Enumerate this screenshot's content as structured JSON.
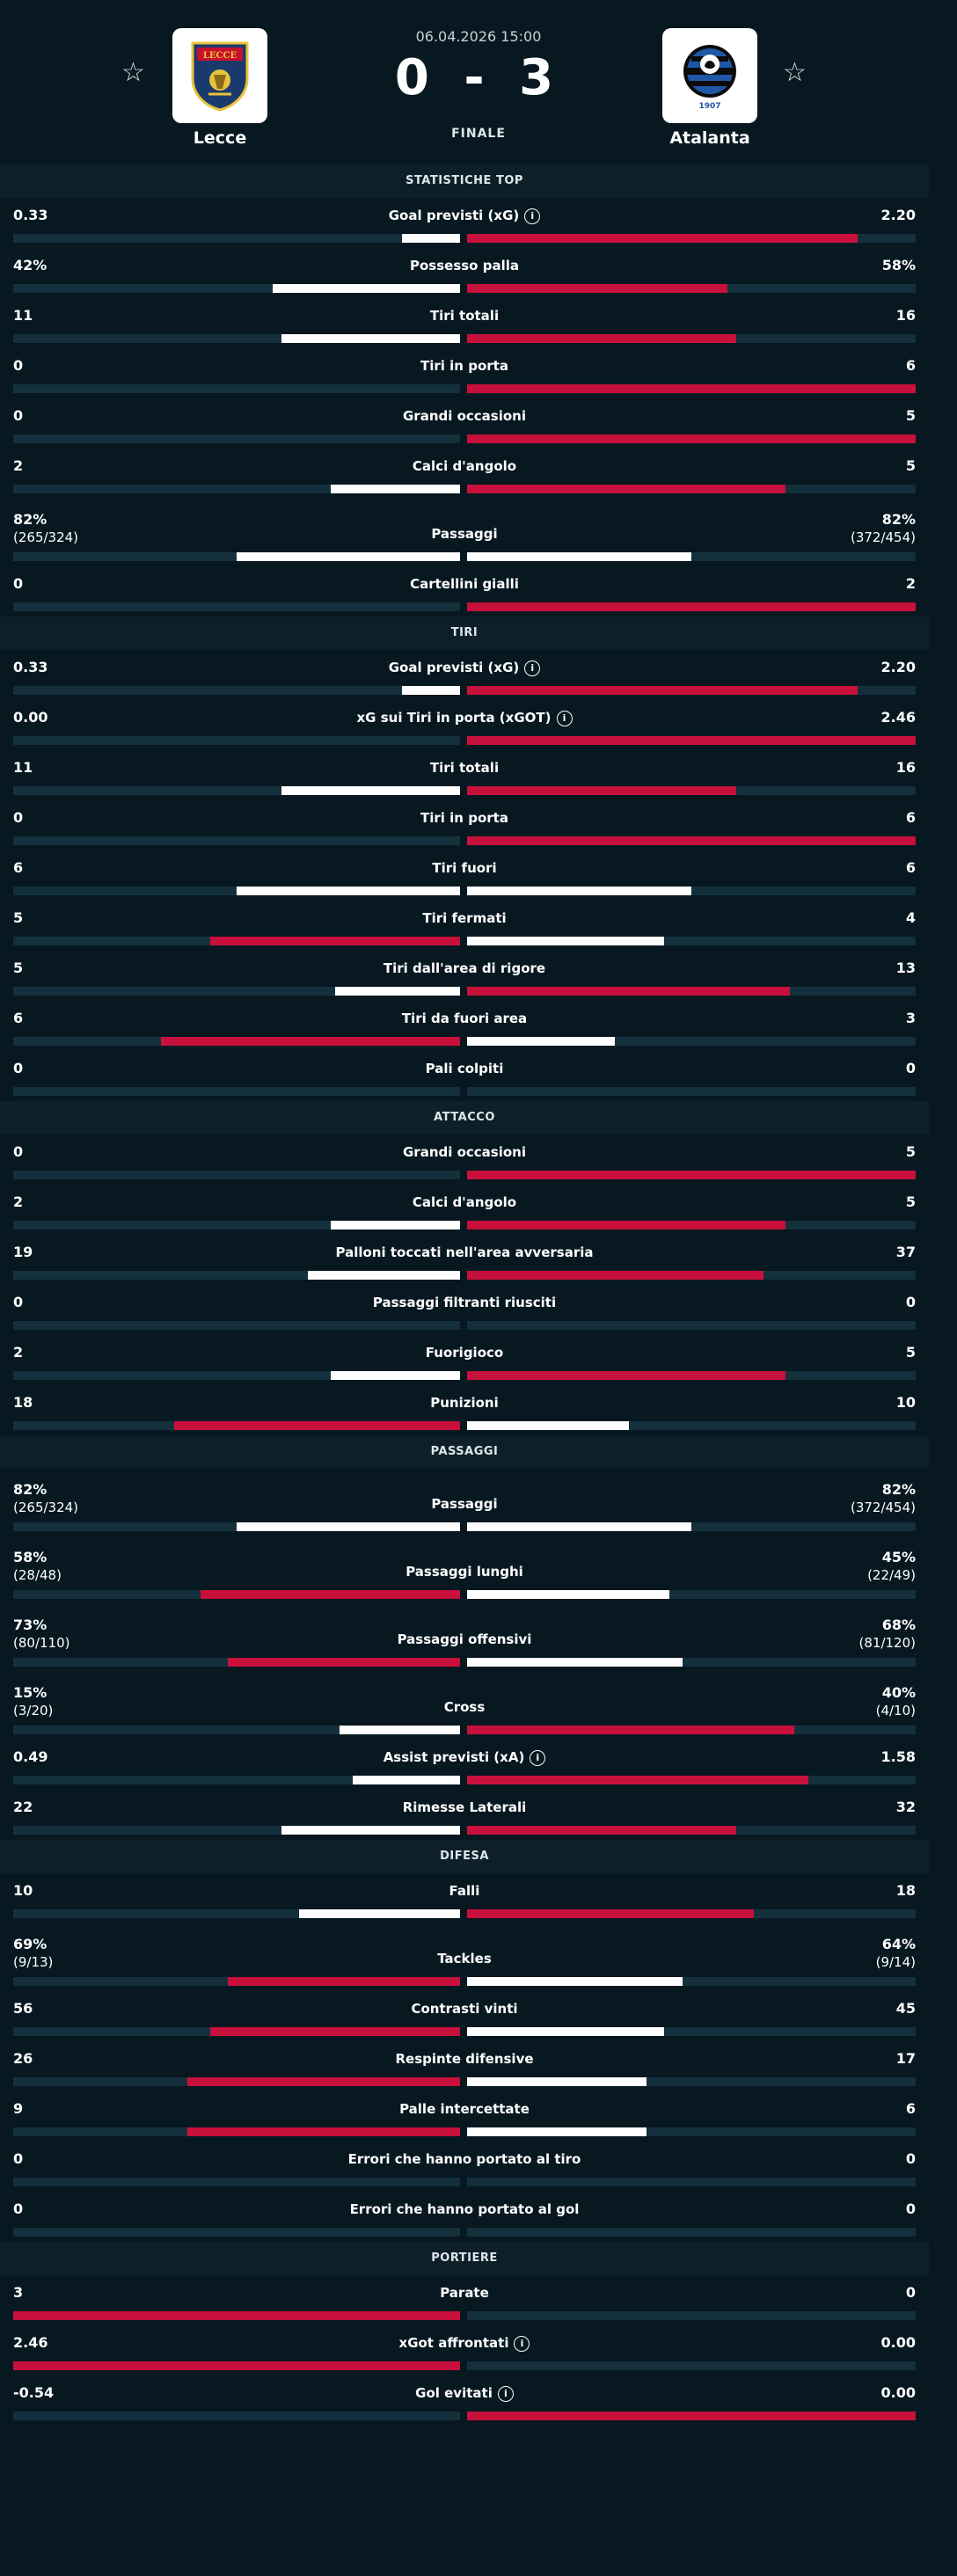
{
  "match": {
    "datetime": "06.04.2026 15:00",
    "score": "0 - 3",
    "status": "FINALE",
    "home": {
      "name": "Lecce",
      "logo_text": "LECCE",
      "colors": [
        "#1a3a6e",
        "#e8c33a",
        "#c8102e"
      ]
    },
    "away": {
      "name": "Atalanta",
      "logo_text": "1907",
      "colors": [
        "#1f57a5",
        "#0b0b0b"
      ]
    }
  },
  "colors": {
    "background": "#071821",
    "section_header": "#0d202a",
    "track": "#14303d",
    "winner_bar": "#c8103c",
    "loser_bar": "#ffffff"
  },
  "sections": [
    {
      "title": "STATISTICHE TOP",
      "rows": [
        {
          "label": "Goal previsti (xG)",
          "info": true,
          "left": "0.33",
          "right": "2.20",
          "lf": 0.13,
          "rf": 0.87,
          "winner": "right"
        },
        {
          "label": "Possesso palla",
          "left": "42%",
          "right": "58%",
          "lf": 0.42,
          "rf": 0.58,
          "winner": "right"
        },
        {
          "label": "Tiri totali",
          "left": "11",
          "right": "16",
          "lf": 0.4,
          "rf": 0.6,
          "winner": "right"
        },
        {
          "label": "Tiri in porta",
          "left": "0",
          "right": "6",
          "lf": 0,
          "rf": 1,
          "winner": "right"
        },
        {
          "label": "Grandi occasioni",
          "left": "0",
          "right": "5",
          "lf": 0,
          "rf": 1,
          "winner": "right"
        },
        {
          "label": "Calci d'angolo",
          "left": "2",
          "right": "5",
          "lf": 0.29,
          "rf": 0.71,
          "winner": "right"
        },
        {
          "label": "Passaggi",
          "left": "82%",
          "left_sub": "(265/324)",
          "right": "82%",
          "right_sub": "(372/454)",
          "lf": 0.5,
          "rf": 0.5,
          "winner": "none"
        },
        {
          "label": "Cartellini gialli",
          "left": "0",
          "right": "2",
          "lf": 0,
          "rf": 1,
          "winner": "right"
        }
      ]
    },
    {
      "title": "TIRI",
      "rows": [
        {
          "label": "Goal previsti (xG)",
          "info": true,
          "left": "0.33",
          "right": "2.20",
          "lf": 0.13,
          "rf": 0.87,
          "winner": "right"
        },
        {
          "label": "xG sui Tiri in porta (xGOT)",
          "info": true,
          "left": "0.00",
          "right": "2.46",
          "lf": 0,
          "rf": 1,
          "winner": "right"
        },
        {
          "label": "Tiri totali",
          "left": "11",
          "right": "16",
          "lf": 0.4,
          "rf": 0.6,
          "winner": "right"
        },
        {
          "label": "Tiri in porta",
          "left": "0",
          "right": "6",
          "lf": 0,
          "rf": 1,
          "winner": "right"
        },
        {
          "label": "Tiri fuori",
          "left": "6",
          "right": "6",
          "lf": 0.5,
          "rf": 0.5,
          "winner": "none"
        },
        {
          "label": "Tiri fermati",
          "left": "5",
          "right": "4",
          "lf": 0.56,
          "rf": 0.44,
          "winner": "left"
        },
        {
          "label": "Tiri dall'area di rigore",
          "left": "5",
          "right": "13",
          "lf": 0.28,
          "rf": 0.72,
          "winner": "right"
        },
        {
          "label": "Tiri da fuori area",
          "left": "6",
          "right": "3",
          "lf": 0.67,
          "rf": 0.33,
          "winner": "left"
        },
        {
          "label": "Pali colpiti",
          "left": "0",
          "right": "0",
          "lf": 0,
          "rf": 0,
          "winner": "none"
        }
      ]
    },
    {
      "title": "ATTACCO",
      "rows": [
        {
          "label": "Grandi occasioni",
          "left": "0",
          "right": "5",
          "lf": 0,
          "rf": 1,
          "winner": "right"
        },
        {
          "label": "Calci d'angolo",
          "left": "2",
          "right": "5",
          "lf": 0.29,
          "rf": 0.71,
          "winner": "right"
        },
        {
          "label": "Palloni toccati nell'area avversaria",
          "left": "19",
          "right": "37",
          "lf": 0.34,
          "rf": 0.66,
          "winner": "right"
        },
        {
          "label": "Passaggi filtranti riusciti",
          "left": "0",
          "right": "0",
          "lf": 0,
          "rf": 0,
          "winner": "none"
        },
        {
          "label": "Fuorigioco",
          "left": "2",
          "right": "5",
          "lf": 0.29,
          "rf": 0.71,
          "winner": "right"
        },
        {
          "label": "Punizioni",
          "left": "18",
          "right": "10",
          "lf": 0.64,
          "rf": 0.36,
          "winner": "left"
        }
      ]
    },
    {
      "title": "PASSAGGI",
      "rows": [
        {
          "label": "Passaggi",
          "left": "82%",
          "left_sub": "(265/324)",
          "right": "82%",
          "right_sub": "(372/454)",
          "lf": 0.5,
          "rf": 0.5,
          "winner": "none"
        },
        {
          "label": "Passaggi lunghi",
          "left": "58%",
          "left_sub": "(28/48)",
          "right": "45%",
          "right_sub": "(22/49)",
          "lf": 0.58,
          "rf": 0.45,
          "winner": "left"
        },
        {
          "label": "Passaggi offensivi",
          "left": "73%",
          "left_sub": "(80/110)",
          "right": "68%",
          "right_sub": "(81/120)",
          "lf": 0.52,
          "rf": 0.48,
          "winner": "left"
        },
        {
          "label": "Cross",
          "left": "15%",
          "left_sub": "(3/20)",
          "right": "40%",
          "right_sub": "(4/10)",
          "lf": 0.27,
          "rf": 0.73,
          "winner": "right"
        },
        {
          "label": "Assist previsti (xA)",
          "info": true,
          "left": "0.49",
          "right": "1.58",
          "lf": 0.24,
          "rf": 0.76,
          "winner": "right"
        },
        {
          "label": "Rimesse Laterali",
          "left": "22",
          "right": "32",
          "lf": 0.4,
          "rf": 0.6,
          "winner": "right"
        }
      ]
    },
    {
      "title": "DIFESA",
      "rows": [
        {
          "label": "Falli",
          "left": "10",
          "right": "18",
          "lf": 0.36,
          "rf": 0.64,
          "winner": "right"
        },
        {
          "label": "Tackles",
          "left": "69%",
          "left_sub": "(9/13)",
          "right": "64%",
          "right_sub": "(9/14)",
          "lf": 0.52,
          "rf": 0.48,
          "winner": "left"
        },
        {
          "label": "Contrasti vinti",
          "left": "56",
          "right": "45",
          "lf": 0.56,
          "rf": 0.44,
          "winner": "left"
        },
        {
          "label": "Respinte difensive",
          "left": "26",
          "right": "17",
          "lf": 0.61,
          "rf": 0.4,
          "winner": "left"
        },
        {
          "label": "Palle intercettate",
          "left": "9",
          "right": "6",
          "lf": 0.61,
          "rf": 0.4,
          "winner": "left"
        },
        {
          "label": "Errori che hanno portato al tiro",
          "left": "0",
          "right": "0",
          "lf": 0,
          "rf": 0,
          "winner": "none"
        },
        {
          "label": "Errori che hanno portato al gol",
          "left": "0",
          "right": "0",
          "lf": 0,
          "rf": 0,
          "winner": "none"
        }
      ]
    },
    {
      "title": "PORTIERE",
      "rows": [
        {
          "label": "Parate",
          "left": "3",
          "right": "0",
          "lf": 1,
          "rf": 0,
          "winner": "left"
        },
        {
          "label": "xGot affrontati",
          "info": true,
          "left": "2.46",
          "right": "0.00",
          "lf": 1,
          "rf": 0,
          "winner": "left"
        },
        {
          "label": "Gol evitati",
          "info": true,
          "left": "-0.54",
          "right": "0.00",
          "lf": 0,
          "rf": 1,
          "winner": "right"
        }
      ]
    }
  ]
}
